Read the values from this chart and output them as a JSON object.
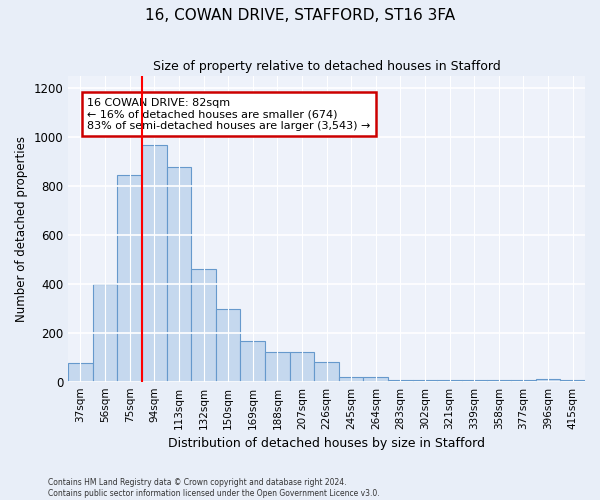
{
  "title1": "16, COWAN DRIVE, STAFFORD, ST16 3FA",
  "title2": "Size of property relative to detached houses in Stafford",
  "xlabel": "Distribution of detached houses by size in Stafford",
  "ylabel": "Number of detached properties",
  "categories": [
    "37sqm",
    "56sqm",
    "75sqm",
    "94sqm",
    "113sqm",
    "132sqm",
    "150sqm",
    "169sqm",
    "188sqm",
    "207sqm",
    "226sqm",
    "245sqm",
    "264sqm",
    "283sqm",
    "302sqm",
    "321sqm",
    "339sqm",
    "358sqm",
    "377sqm",
    "396sqm",
    "415sqm"
  ],
  "values": [
    75,
    400,
    845,
    965,
    875,
    460,
    295,
    165,
    120,
    120,
    80,
    20,
    20,
    5,
    5,
    5,
    5,
    5,
    5,
    10,
    5
  ],
  "bar_color": "#c5d8ee",
  "bar_edge_color": "#6699cc",
  "red_line_index": 2,
  "annotation_text": "16 COWAN DRIVE: 82sqm\n← 16% of detached houses are smaller (674)\n83% of semi-detached houses are larger (3,543) →",
  "annotation_box_color": "#ffffff",
  "annotation_box_edge_color": "#cc0000",
  "ylim": [
    0,
    1250
  ],
  "yticks": [
    0,
    200,
    400,
    600,
    800,
    1000,
    1200
  ],
  "footer1": "Contains HM Land Registry data © Crown copyright and database right 2024.",
  "footer2": "Contains public sector information licensed under the Open Government Licence v3.0.",
  "bg_color": "#e8eef8",
  "plot_bg_color": "#eef2fa",
  "title1_fontsize": 11,
  "title2_fontsize": 9
}
